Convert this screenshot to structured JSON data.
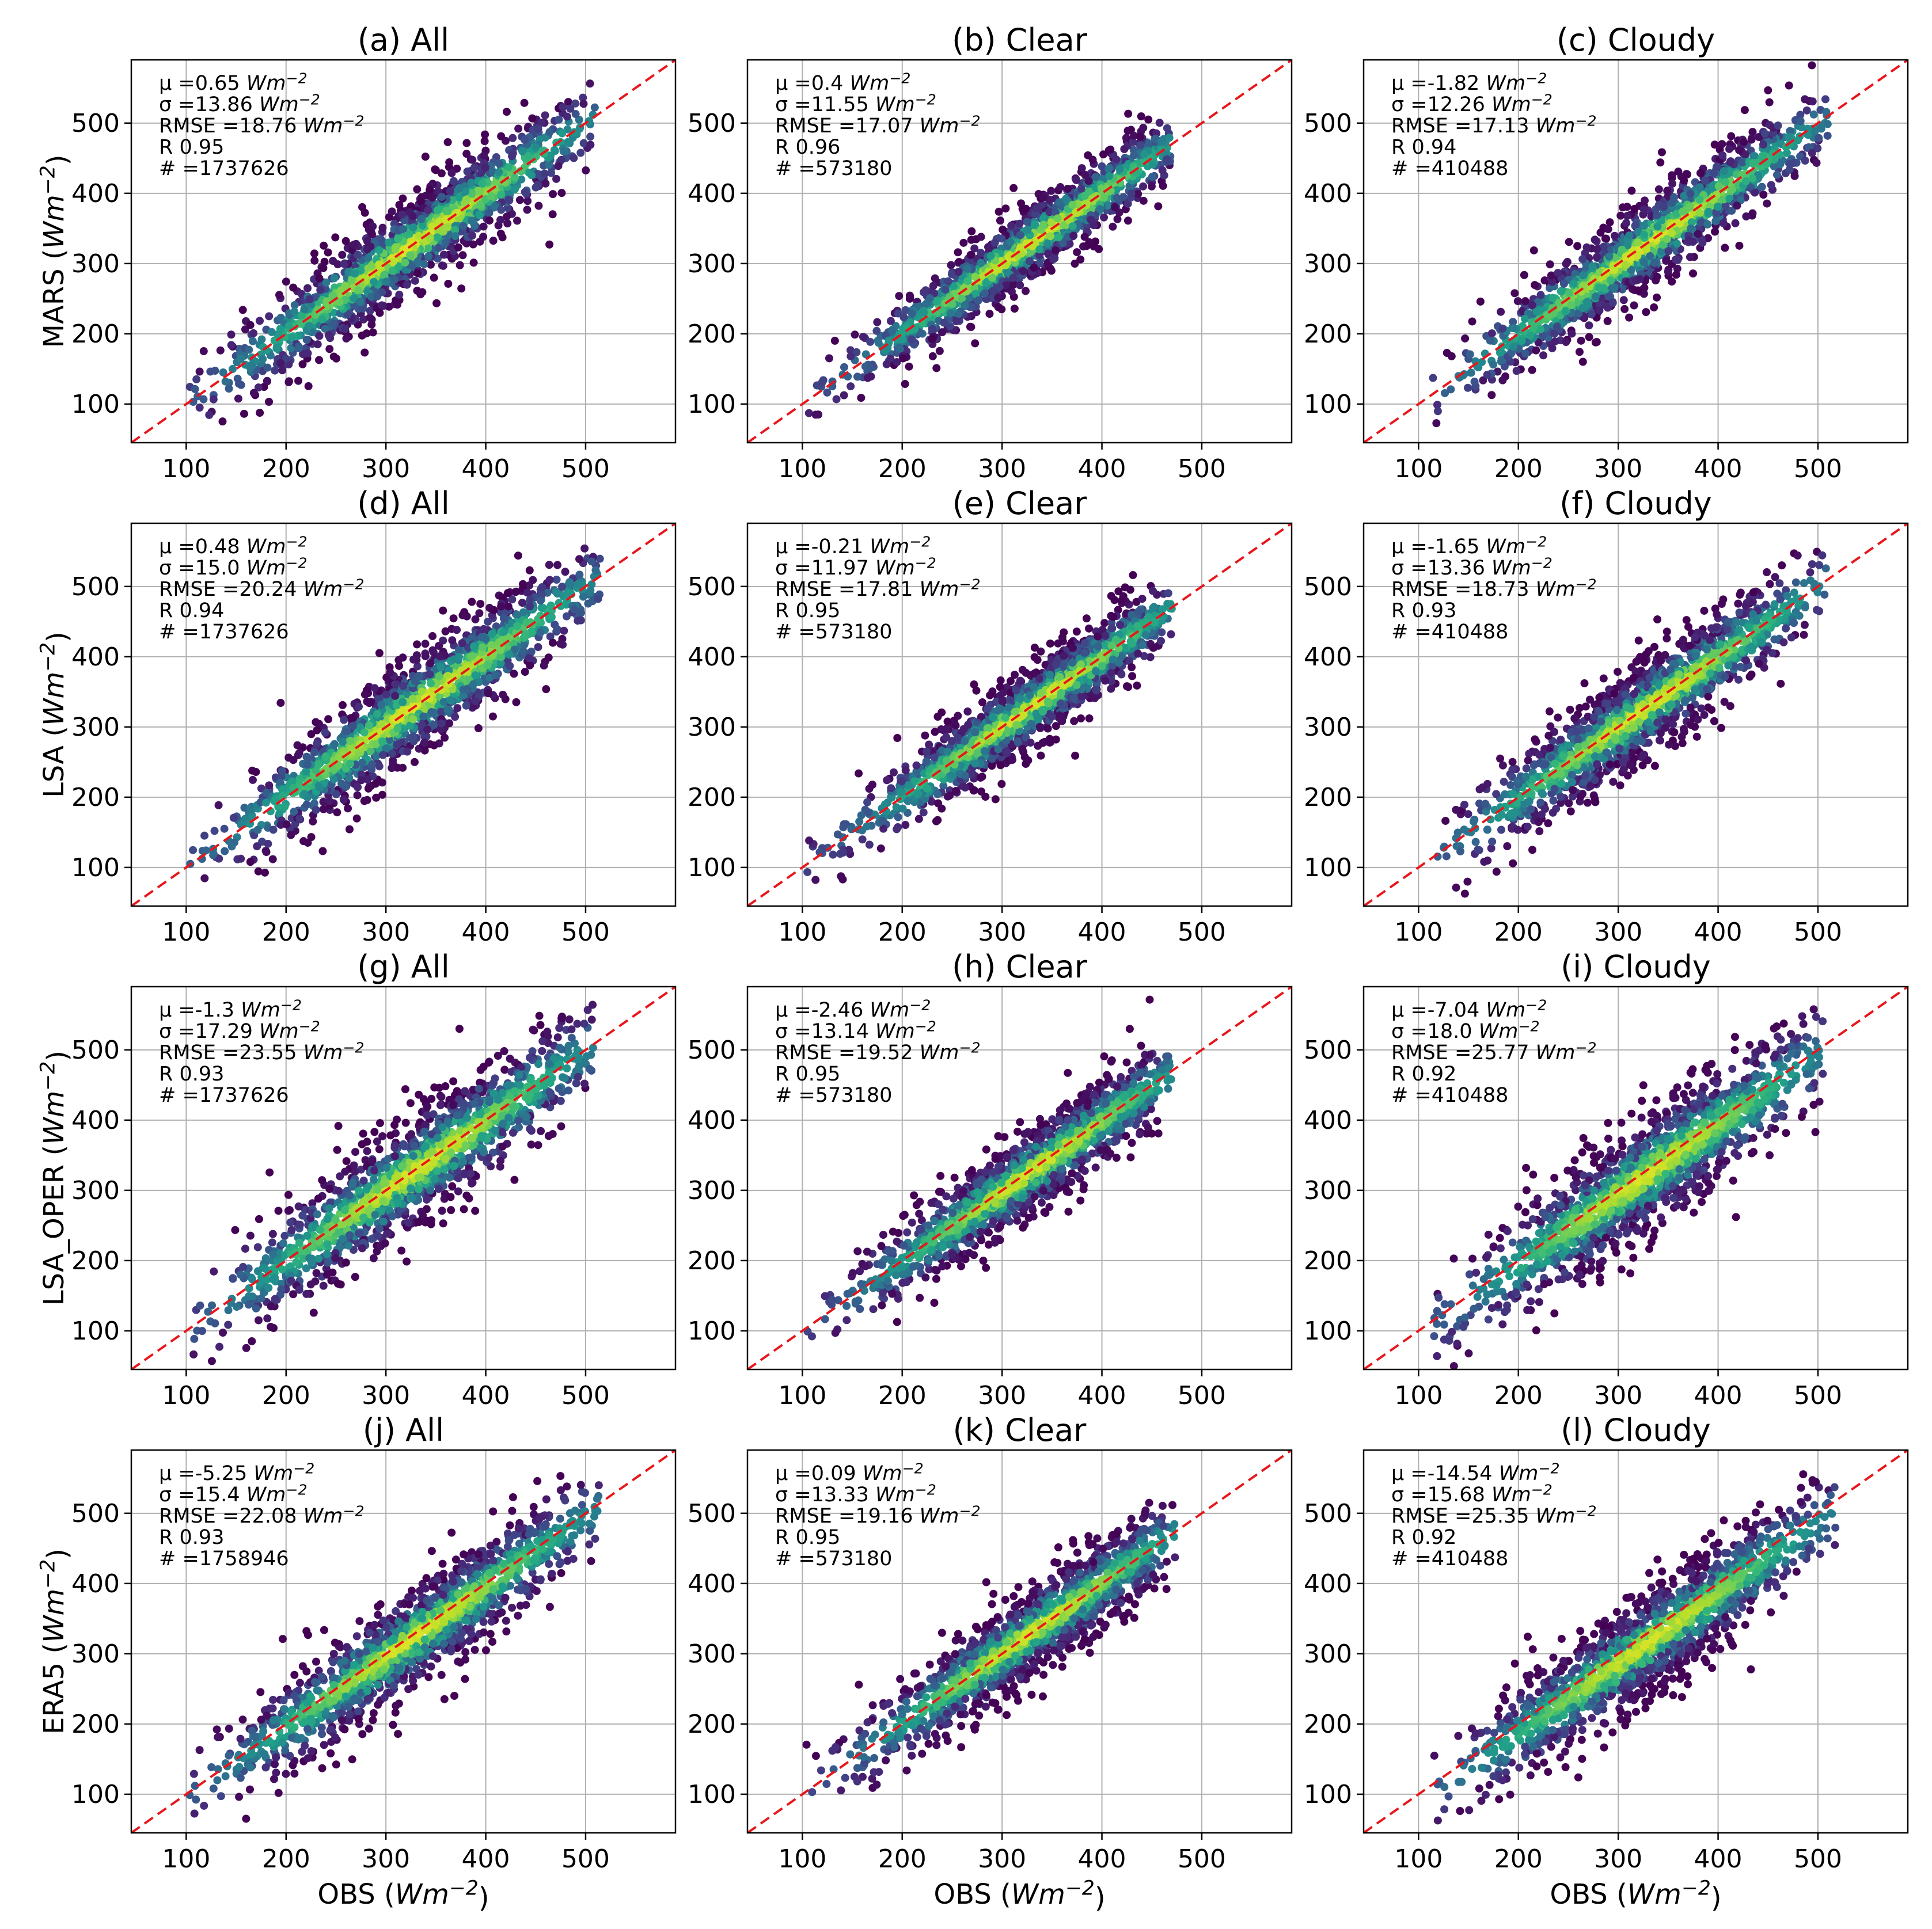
{
  "chart_data": {
    "type": "scatter",
    "figure_layout": "4 rows x 3 columns of density scatter plots",
    "xlabel": "OBS",
    "units": "Wm",
    "unit_exponent": "−2",
    "x_ticks": [
      100,
      200,
      300,
      400,
      500
    ],
    "y_ticks": [
      100,
      200,
      300,
      400,
      500
    ],
    "xlim": [
      45,
      590
    ],
    "ylim": [
      45,
      590
    ],
    "reference_line": "1:1",
    "colormap": "viridis",
    "row_labels": [
      "MARS",
      "LSA",
      "LSA_OPER",
      "ERA5"
    ],
    "column_labels": [
      "All",
      "Clear",
      "Cloudy"
    ],
    "stat_labels": {
      "mean": "μ",
      "std": "σ",
      "rmse": "RMSE",
      "r": "R",
      "n": "#"
    },
    "panels": [
      {
        "tag": "(a)",
        "title": "All",
        "row": 0,
        "col": 0,
        "mean": "0.65",
        "std": "13.86",
        "rmse": "18.76",
        "r": "0.95",
        "n": "1737626",
        "obs_range": [
          100,
          510
        ],
        "spread": 46
      },
      {
        "tag": "(b)",
        "title": "Clear",
        "row": 0,
        "col": 1,
        "mean": "0.4",
        "std": "11.55",
        "rmse": "17.07",
        "r": "0.96",
        "n": "573180",
        "obs_range": [
          100,
          470
        ],
        "spread": 38
      },
      {
        "tag": "(c)",
        "title": "Cloudy",
        "row": 0,
        "col": 2,
        "mean": "-1.82",
        "std": "12.26",
        "rmse": "17.13",
        "r": "0.94",
        "n": "410488",
        "obs_range": [
          110,
          510
        ],
        "spread": 44
      },
      {
        "tag": "(d)",
        "title": "All",
        "row": 1,
        "col": 0,
        "mean": "0.48",
        "std": "15.0",
        "rmse": "20.24",
        "r": "0.94",
        "n": "1737626",
        "obs_range": [
          100,
          515
        ],
        "spread": 50
      },
      {
        "tag": "(e)",
        "title": "Clear",
        "row": 1,
        "col": 1,
        "mean": "-0.21",
        "std": "11.97",
        "rmse": "17.81",
        "r": "0.95",
        "n": "573180",
        "obs_range": [
          100,
          470
        ],
        "spread": 40
      },
      {
        "tag": "(f)",
        "title": "Cloudy",
        "row": 1,
        "col": 2,
        "mean": "-1.65",
        "std": "13.36",
        "rmse": "18.73",
        "r": "0.93",
        "n": "410488",
        "obs_range": [
          110,
          510
        ],
        "spread": 48
      },
      {
        "tag": "(g)",
        "title": "All",
        "row": 2,
        "col": 0,
        "mean": "-1.3",
        "std": "17.29",
        "rmse": "23.55",
        "r": "0.93",
        "n": "1737626",
        "obs_range": [
          100,
          510
        ],
        "spread": 56
      },
      {
        "tag": "(h)",
        "title": "Clear",
        "row": 2,
        "col": 1,
        "mean": "-2.46",
        "std": "13.14",
        "rmse": "19.52",
        "r": "0.95",
        "n": "573180",
        "obs_range": [
          100,
          470
        ],
        "spread": 44
      },
      {
        "tag": "(i)",
        "title": "Cloudy",
        "row": 2,
        "col": 2,
        "mean": "-7.04",
        "std": "18.0",
        "rmse": "25.77",
        "r": "0.92",
        "n": "410488",
        "obs_range": [
          110,
          505
        ],
        "spread": 58
      },
      {
        "tag": "(j)",
        "title": "All",
        "row": 3,
        "col": 0,
        "mean": "-5.25",
        "std": "15.4",
        "rmse": "22.08",
        "r": "0.93",
        "n": "1758946",
        "obs_range": [
          100,
          515
        ],
        "spread": 50
      },
      {
        "tag": "(k)",
        "title": "Clear",
        "row": 3,
        "col": 1,
        "mean": "0.09",
        "std": "13.33",
        "rmse": "19.16",
        "r": "0.95",
        "n": "573180",
        "obs_range": [
          100,
          475
        ],
        "spread": 44
      },
      {
        "tag": "(l)",
        "title": "Cloudy",
        "row": 3,
        "col": 2,
        "mean": "-14.54",
        "std": "15.68",
        "rmse": "25.35",
        "r": "0.92",
        "n": "410488",
        "obs_range": [
          110,
          520
        ],
        "spread": 50
      }
    ]
  }
}
